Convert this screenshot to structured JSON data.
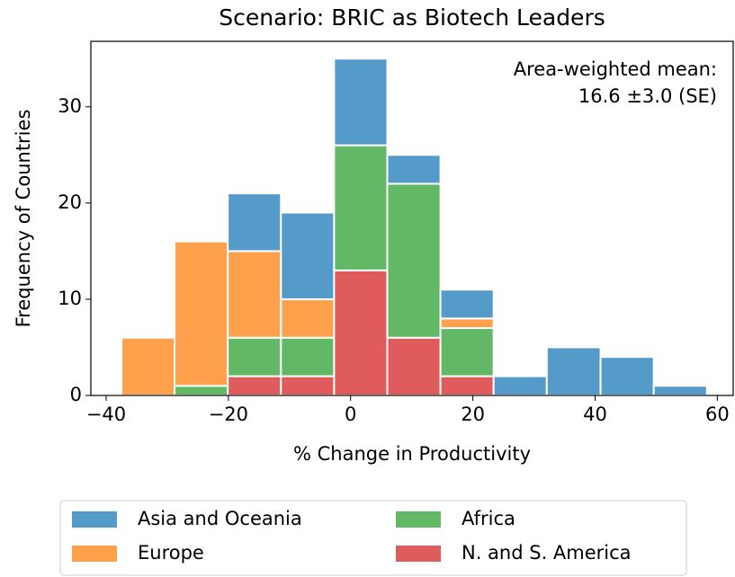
{
  "chart_data": {
    "type": "histogram",
    "stacked": true,
    "title": "Scenario: BRIC as Biotech Leaders",
    "xlabel": "% Change in Productivity",
    "ylabel": "Frequency of Countries",
    "annotation": [
      "Area-weighted mean:",
      "16.6 ±3.0 (SE)"
    ],
    "bins": [
      -37.5,
      -28.8,
      -20.1,
      -11.4,
      -2.7,
      6.0,
      14.7,
      23.4,
      32.1,
      40.9,
      49.6,
      58.3
    ],
    "series": [
      {
        "name": "Asia and Oceania",
        "color": "#559bca",
        "values": [
          0,
          0,
          6,
          9,
          9,
          3,
          3,
          2,
          5,
          4,
          1
        ]
      },
      {
        "name": "Europe",
        "color": "#ffa04c",
        "values": [
          6,
          15,
          9,
          4,
          0,
          0,
          1,
          0,
          0,
          0,
          0
        ]
      },
      {
        "name": "Africa",
        "color": "#62b865",
        "values": [
          0,
          1,
          4,
          4,
          13,
          16,
          5,
          0,
          0,
          0,
          0
        ]
      },
      {
        "name": "N. and S. America",
        "color": "#e05c5c",
        "values": [
          0,
          0,
          2,
          2,
          13,
          6,
          2,
          0,
          0,
          0,
          0
        ]
      }
    ],
    "xlim": [
      -42.5,
      62.6
    ],
    "ylim": [
      0,
      36.8
    ],
    "xticks": [
      {
        "value": -40,
        "label": "−40"
      },
      {
        "value": -20,
        "label": "−20"
      },
      0,
      20,
      40,
      60
    ],
    "yticks": [
      0,
      10,
      20,
      30
    ],
    "legend_columns": 2
  }
}
